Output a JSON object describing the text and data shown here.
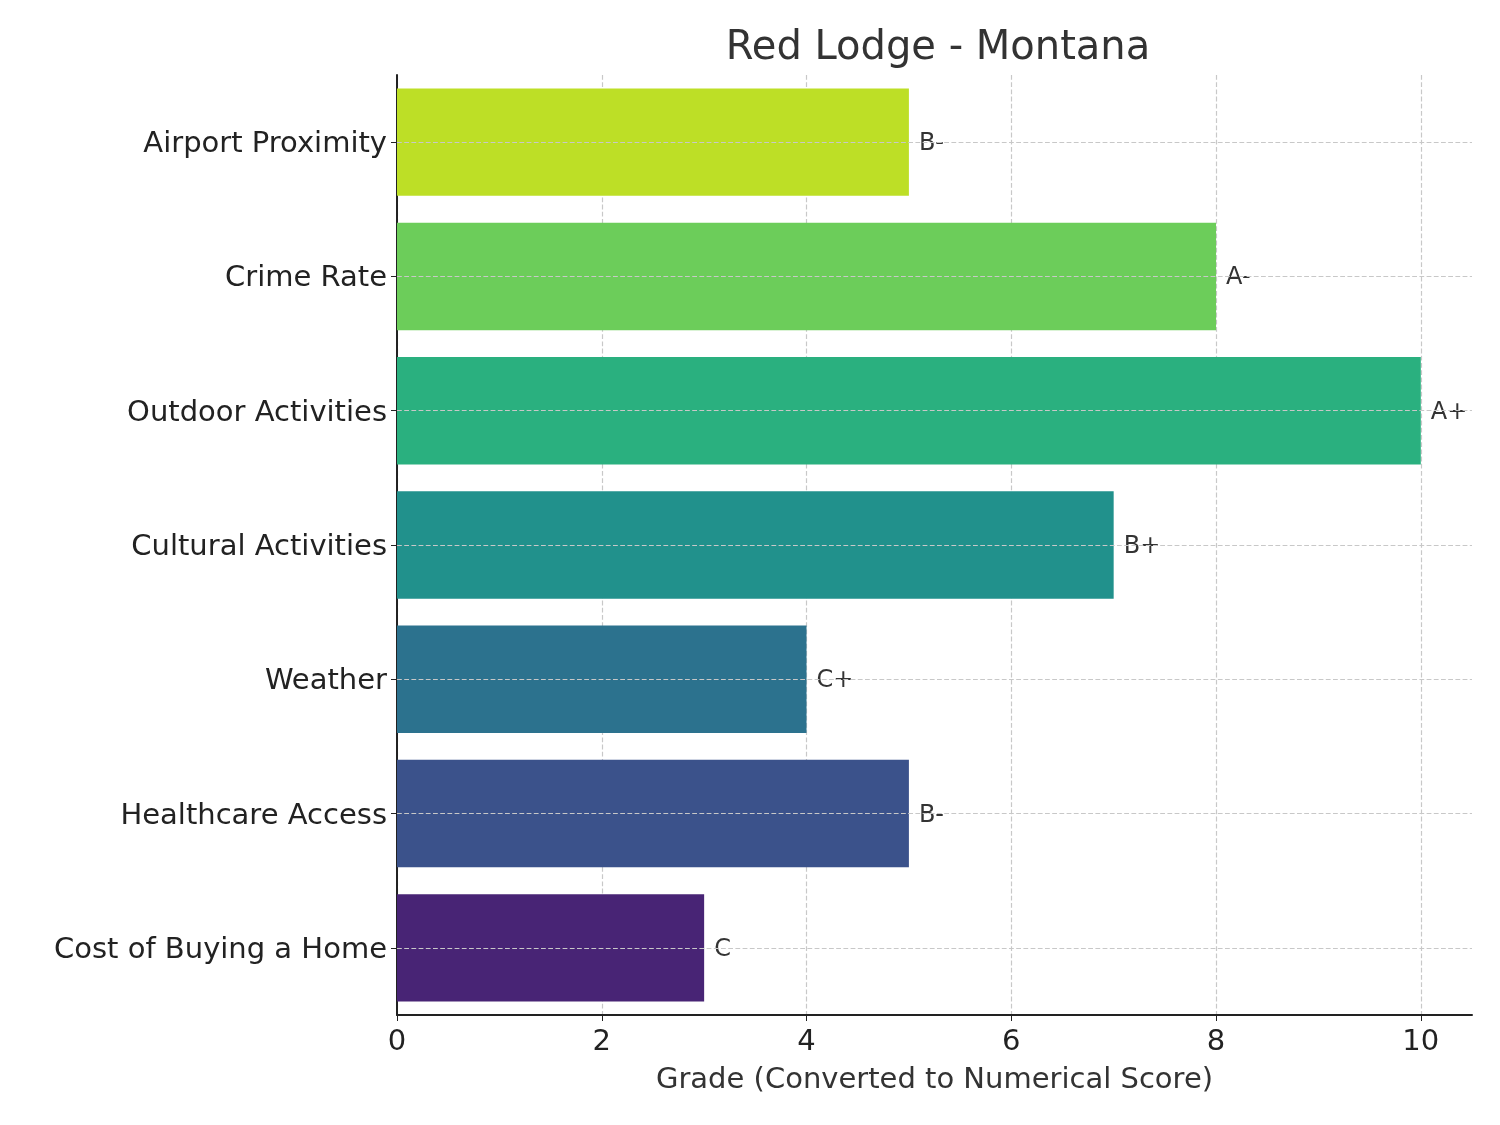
{
  "chart_data": {
    "type": "bar",
    "orientation": "horizontal",
    "title": "Red Lodge - Montana",
    "xlabel": "Grade (Converted to Numerical Score)",
    "categories": [
      "Airport Proximity",
      "Crime Rate",
      "Outdoor Activities",
      "Cultural Activities",
      "Weather",
      "Healthcare Access",
      "Cost of Buying a Home"
    ],
    "values": [
      5,
      8,
      10,
      7,
      4,
      5,
      3
    ],
    "value_labels": [
      "B-",
      "A-",
      "A+",
      "B+",
      "C+",
      "B-",
      "C"
    ],
    "colors": [
      "#bddf26",
      "#6ccd5a",
      "#2ab07f",
      "#21918c",
      "#2c728e",
      "#3b528b",
      "#482475"
    ],
    "xlim": [
      0,
      10.5
    ],
    "xticks": [
      0,
      2,
      4,
      6,
      8,
      10
    ],
    "grid": true
  }
}
